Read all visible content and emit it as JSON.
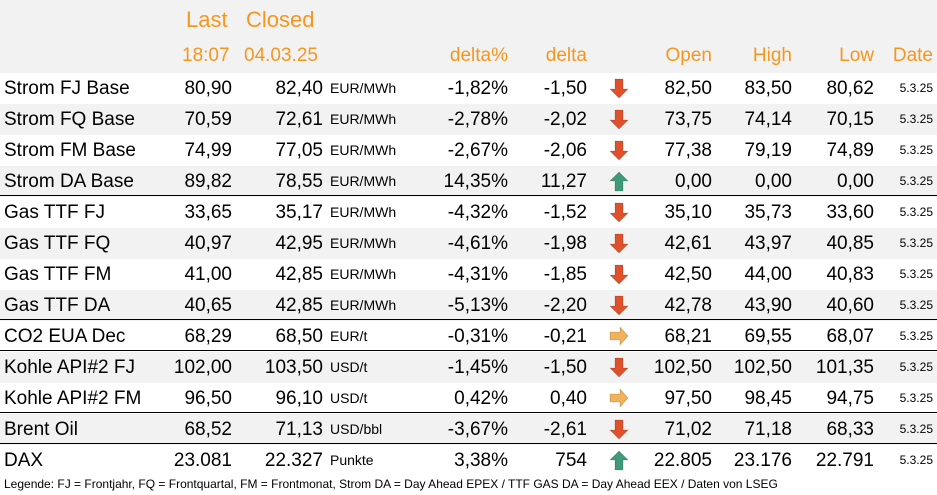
{
  "header": {
    "last": "Last",
    "closed": "Closed",
    "last_time": "18:07",
    "closed_date": "04.03.25",
    "delta_pct": "delta%",
    "delta": "delta",
    "open": "Open",
    "high": "High",
    "low": "Low",
    "date": "Date"
  },
  "colors": {
    "accent": "#f5961e",
    "down": "#e0502a",
    "up": "#3e9a78",
    "flat": "#f0b25a",
    "band": "#f2f2f2"
  },
  "rows": [
    {
      "name": "Strom FJ Base",
      "last": "80,90",
      "closed": "82,40",
      "unit": "EUR/MWh",
      "delta_pct": "-1,82%",
      "delta": "-1,50",
      "trend": "down",
      "open": "82,50",
      "high": "83,50",
      "low": "80,62",
      "date": "5.3.25"
    },
    {
      "name": "Strom FQ Base",
      "last": "70,59",
      "closed": "72,61",
      "unit": "EUR/MWh",
      "delta_pct": "-2,78%",
      "delta": "-2,02",
      "trend": "down",
      "open": "73,75",
      "high": "74,14",
      "low": "70,15",
      "date": "5.3.25"
    },
    {
      "name": "Strom FM Base",
      "last": "74,99",
      "closed": "77,05",
      "unit": "EUR/MWh",
      "delta_pct": "-2,67%",
      "delta": "-2,06",
      "trend": "down",
      "open": "77,38",
      "high": "79,19",
      "low": "74,89",
      "date": "5.3.25"
    },
    {
      "name": "Strom DA Base",
      "last": "89,82",
      "closed": "78,55",
      "unit": "EUR/MWh",
      "delta_pct": "14,35%",
      "delta": "11,27",
      "trend": "up",
      "open": "0,00",
      "high": "0,00",
      "low": "0,00",
      "date": "5.3.25"
    },
    {
      "name": "Gas TTF FJ",
      "last": "33,65",
      "closed": "35,17",
      "unit": "EUR/MWh",
      "delta_pct": "-4,32%",
      "delta": "-1,52",
      "trend": "down",
      "open": "35,10",
      "high": "35,73",
      "low": "33,60",
      "date": "5.3.25"
    },
    {
      "name": "Gas TTF FQ",
      "last": "40,97",
      "closed": "42,95",
      "unit": "EUR/MWh",
      "delta_pct": "-4,61%",
      "delta": "-1,98",
      "trend": "down",
      "open": "42,61",
      "high": "43,97",
      "low": "40,85",
      "date": "5.3.25"
    },
    {
      "name": "Gas TTF FM",
      "last": "41,00",
      "closed": "42,85",
      "unit": "EUR/MWh",
      "delta_pct": "-4,31%",
      "delta": "-1,85",
      "trend": "down",
      "open": "42,50",
      "high": "44,00",
      "low": "40,83",
      "date": "5.3.25"
    },
    {
      "name": "Gas TTF DA",
      "last": "40,65",
      "closed": "42,85",
      "unit": "EUR/MWh",
      "delta_pct": "-5,13%",
      "delta": "-2,20",
      "trend": "down",
      "open": "42,78",
      "high": "43,90",
      "low": "40,60",
      "date": "5.3.25"
    },
    {
      "name": "CO2 EUA Dec",
      "last": "68,29",
      "closed": "68,50",
      "unit": "EUR/t",
      "delta_pct": "-0,31%",
      "delta": "-0,21",
      "trend": "flat",
      "open": "68,21",
      "high": "69,55",
      "low": "68,07",
      "date": "5.3.25"
    },
    {
      "name": "Kohle API#2 FJ",
      "last": "102,00",
      "closed": "103,50",
      "unit": "USD/t",
      "delta_pct": "-1,45%",
      "delta": "-1,50",
      "trend": "down",
      "open": "102,50",
      "high": "102,50",
      "low": "101,35",
      "date": "5.3.25"
    },
    {
      "name": "Kohle API#2 FM",
      "last": "96,50",
      "closed": "96,10",
      "unit": "USD/t",
      "delta_pct": "0,42%",
      "delta": "0,40",
      "trend": "flat",
      "open": "97,50",
      "high": "98,45",
      "low": "94,75",
      "date": "5.3.25"
    },
    {
      "name": "Brent Oil",
      "last": "68,52",
      "closed": "71,13",
      "unit": "USD/bbl",
      "delta_pct": "-3,67%",
      "delta": "-2,61",
      "trend": "down",
      "open": "71,02",
      "high": "71,18",
      "low": "68,33",
      "date": "5.3.25"
    },
    {
      "name": "DAX",
      "last": "23.081",
      "closed": "22.327",
      "unit": "Punkte",
      "delta_pct": "3,38%",
      "delta": "754",
      "trend": "up",
      "open": "22.805",
      "high": "23.176",
      "low": "22.791",
      "date": "5.3.25"
    }
  ],
  "legend": "Legende: FJ = Frontjahr, FQ = Frontquartal, FM = Frontmonat, Strom DA = Day Ahead EPEX / TTF GAS DA = Day Ahead EEX / Daten von LSEG"
}
